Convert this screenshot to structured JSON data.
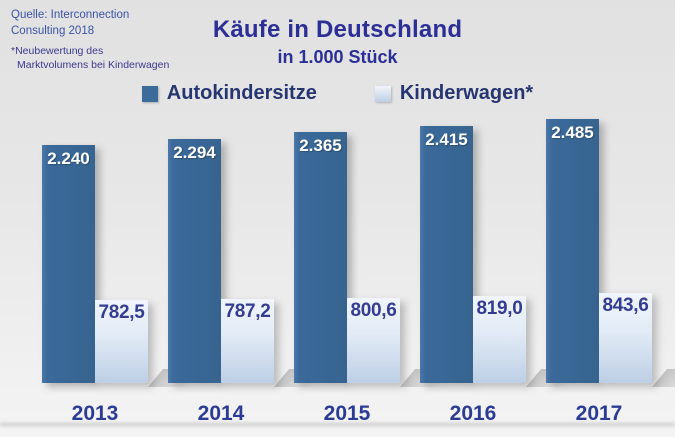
{
  "source": {
    "line1": "Quelle: Interconnection",
    "line2": "Consulting 2018"
  },
  "footnote": {
    "line1": "*Neubewertung des",
    "line2": "Marktvolumens bei Kinderwagen"
  },
  "chart_data": {
    "type": "bar",
    "title": "Käufe in Deutschland",
    "subtitle": "in 1.000 Stück",
    "xlabel": "",
    "ylabel": "",
    "categories": [
      "2013",
      "2014",
      "2015",
      "2016",
      "2017"
    ],
    "series": [
      {
        "name": "Autokindersitze",
        "values": [
          2240,
          2294,
          2365,
          2415,
          2485
        ],
        "labels": [
          "2.240",
          "2.294",
          "2.365",
          "2.415",
          "2.485"
        ]
      },
      {
        "name": "Kinderwagen*",
        "values": [
          782.5,
          787.2,
          800.6,
          819.0,
          843.6
        ],
        "labels": [
          "782,5",
          "787,2",
          "800,6",
          "819,0",
          "843,6"
        ]
      }
    ],
    "legend_position": "top",
    "grid": false,
    "axes_visible": false,
    "ylim": [
      0,
      2600
    ]
  },
  "colors": {
    "background_top": "#e1e1e1",
    "background_bottom": "#f4f4f4",
    "title_text": "#2c2f96",
    "legend_text": "#273671",
    "axis_text": "#2c3c94",
    "source_text": "#3b55a5",
    "footnote_text": "#3a3a8e",
    "bar_dark": "#3b6a9b",
    "bar_light_top": "#f1f5fb",
    "bar_light_bottom": "#bdcfe5",
    "value_label_dark_bar": "#ffffff",
    "value_label_light_bar": "#343d90"
  }
}
